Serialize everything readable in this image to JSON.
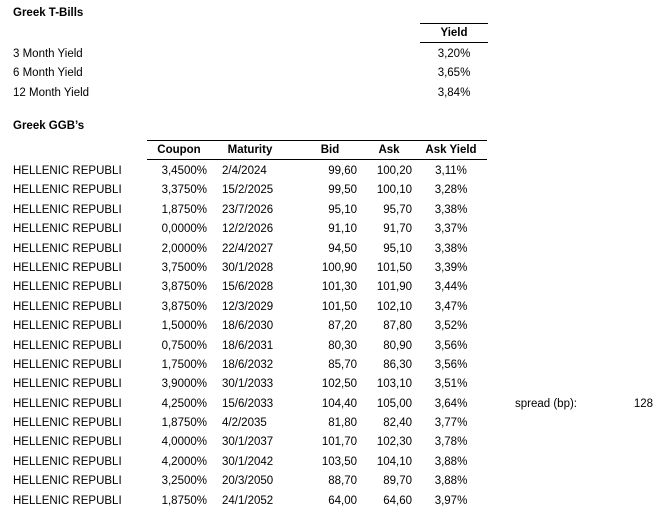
{
  "colors": {
    "background": "#ffffff",
    "text": "#000000",
    "border": "#000000"
  },
  "tbills": {
    "title": "Greek T-Bills",
    "yield_header": "Yield",
    "rows": [
      {
        "label": "3 Month Yield",
        "value": "3,20%"
      },
      {
        "label": "6 Month Yield",
        "value": "3,65%"
      },
      {
        "label": "12 Month Yield",
        "value": "3,84%"
      }
    ]
  },
  "ggb": {
    "title": "Greek GGB’s",
    "columns": {
      "coupon": "Coupon",
      "maturity": "Maturity",
      "bid": "Bid",
      "ask": "Ask",
      "ask_yield": "Ask Yield"
    },
    "rows": [
      {
        "issuer": "HELLENIC REPUBLI",
        "coupon": "3,4500%",
        "maturity": "2/4/2024",
        "bid": "99,60",
        "ask": "100,20",
        "ask_yield": "3,11%"
      },
      {
        "issuer": "HELLENIC REPUBLI",
        "coupon": "3,3750%",
        "maturity": "15/2/2025",
        "bid": "99,50",
        "ask": "100,10",
        "ask_yield": "3,28%"
      },
      {
        "issuer": "HELLENIC REPUBLI",
        "coupon": "1,8750%",
        "maturity": "23/7/2026",
        "bid": "95,10",
        "ask": "95,70",
        "ask_yield": "3,38%"
      },
      {
        "issuer": "HELLENIC REPUBLI",
        "coupon": "0,0000%",
        "maturity": "12/2/2026",
        "bid": "91,10",
        "ask": "91,70",
        "ask_yield": "3,37%"
      },
      {
        "issuer": "HELLENIC REPUBLI",
        "coupon": "2,0000%",
        "maturity": "22/4/2027",
        "bid": "94,50",
        "ask": "95,10",
        "ask_yield": "3,38%"
      },
      {
        "issuer": "HELLENIC REPUBLI",
        "coupon": "3,7500%",
        "maturity": "30/1/2028",
        "bid": "100,90",
        "ask": "101,50",
        "ask_yield": "3,39%"
      },
      {
        "issuer": "HELLENIC REPUBLI",
        "coupon": "3,8750%",
        "maturity": "15/6/2028",
        "bid": "101,30",
        "ask": "101,90",
        "ask_yield": "3,44%"
      },
      {
        "issuer": "HELLENIC REPUBLI",
        "coupon": "3,8750%",
        "maturity": "12/3/2029",
        "bid": "101,50",
        "ask": "102,10",
        "ask_yield": "3,47%"
      },
      {
        "issuer": "HELLENIC REPUBLI",
        "coupon": "1,5000%",
        "maturity": "18/6/2030",
        "bid": "87,20",
        "ask": "87,80",
        "ask_yield": "3,52%"
      },
      {
        "issuer": "HELLENIC REPUBLI",
        "coupon": "0,7500%",
        "maturity": "18/6/2031",
        "bid": "80,30",
        "ask": "80,90",
        "ask_yield": "3,56%"
      },
      {
        "issuer": "HELLENIC REPUBLI",
        "coupon": "1,7500%",
        "maturity": "18/6/2032",
        "bid": "85,70",
        "ask": "86,30",
        "ask_yield": "3,56%"
      },
      {
        "issuer": "HELLENIC REPUBLI",
        "coupon": "3,9000%",
        "maturity": "30/1/2033",
        "bid": "102,50",
        "ask": "103,10",
        "ask_yield": "3,51%"
      },
      {
        "issuer": "HELLENIC REPUBLI",
        "coupon": "4,2500%",
        "maturity": "15/6/2033",
        "bid": "104,40",
        "ask": "105,00",
        "ask_yield": "3,64%"
      },
      {
        "issuer": "HELLENIC REPUBLI",
        "coupon": "1,8750%",
        "maturity": "4/2/2035",
        "bid": "81,80",
        "ask": "82,40",
        "ask_yield": "3,77%"
      },
      {
        "issuer": "HELLENIC REPUBLI",
        "coupon": "4,0000%",
        "maturity": "30/1/2037",
        "bid": "101,70",
        "ask": "102,30",
        "ask_yield": "3,78%"
      },
      {
        "issuer": "HELLENIC REPUBLI",
        "coupon": "4,2000%",
        "maturity": "30/1/2042",
        "bid": "103,50",
        "ask": "104,10",
        "ask_yield": "3,88%"
      },
      {
        "issuer": "HELLENIC REPUBLI",
        "coupon": "3,2500%",
        "maturity": "20/3/2050",
        "bid": "88,70",
        "ask": "89,70",
        "ask_yield": "3,88%"
      },
      {
        "issuer": "HELLENIC REPUBLI",
        "coupon": "1,8750%",
        "maturity": "24/1/2052",
        "bid": "64,00",
        "ask": "64,60",
        "ask_yield": "3,97%"
      }
    ]
  },
  "spread": {
    "label": "spread (bp):",
    "value": "128"
  }
}
